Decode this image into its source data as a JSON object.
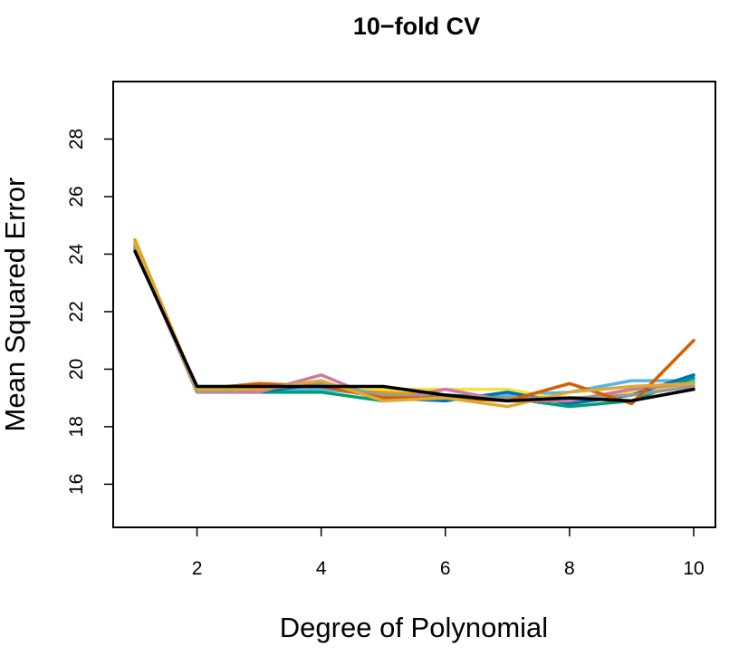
{
  "chart_data": {
    "type": "line",
    "title": "10−fold CV",
    "xlabel": "Degree of Polynomial",
    "ylabel": "Mean Squared Error",
    "xlim": [
      0.65,
      10.35
    ],
    "ylim": [
      14.5,
      30.0
    ],
    "x_ticks": [
      "2",
      "4",
      "6",
      "8",
      "10"
    ],
    "y_ticks": [
      "16",
      "18",
      "20",
      "22",
      "24",
      "26",
      "28"
    ],
    "grid": false,
    "legend": "none",
    "x": [
      1,
      2,
      3,
      4,
      5,
      6,
      7,
      8,
      9,
      10
    ],
    "series": [
      {
        "color": "#E69F00",
        "values": [
          24.5,
          19.3,
          19.3,
          19.5,
          19.2,
          19.1,
          19.0,
          18.9,
          19.3,
          19.6
        ]
      },
      {
        "color": "#56B4E9",
        "values": [
          24.3,
          19.2,
          19.3,
          19.3,
          19.1,
          19.0,
          19.1,
          19.2,
          19.6,
          19.6
        ]
      },
      {
        "color": "#009E73",
        "values": [
          24.2,
          19.3,
          19.2,
          19.2,
          18.9,
          19.1,
          19.0,
          18.7,
          18.9,
          19.7
        ]
      },
      {
        "color": "#F0E442",
        "values": [
          24.4,
          19.2,
          19.4,
          19.4,
          19.3,
          19.3,
          19.3,
          18.9,
          19.2,
          19.5
        ]
      },
      {
        "color": "#0072B2",
        "values": [
          24.3,
          19.3,
          19.2,
          19.5,
          19.0,
          18.9,
          19.2,
          18.8,
          19.1,
          19.8
        ]
      },
      {
        "color": "#CC79A7",
        "values": [
          24.2,
          19.2,
          19.2,
          19.8,
          18.9,
          19.3,
          18.9,
          18.9,
          19.3,
          19.5
        ]
      },
      {
        "color": "#999999",
        "values": [
          24.3,
          19.2,
          19.3,
          19.5,
          19.1,
          19.0,
          19.0,
          19.0,
          19.1,
          19.4
        ]
      },
      {
        "color": "#D55E00",
        "values": [
          24.4,
          19.3,
          19.5,
          19.4,
          19.0,
          19.0,
          18.9,
          19.5,
          18.8,
          21.0
        ]
      },
      {
        "color": "#DDAA33",
        "values": [
          24.4,
          19.3,
          19.3,
          19.6,
          18.9,
          19.0,
          18.7,
          19.2,
          19.4,
          19.5
        ]
      },
      {
        "color": "#000000",
        "values": [
          24.1,
          19.4,
          19.4,
          19.4,
          19.4,
          19.1,
          18.9,
          19.0,
          18.9,
          19.3
        ]
      }
    ]
  }
}
